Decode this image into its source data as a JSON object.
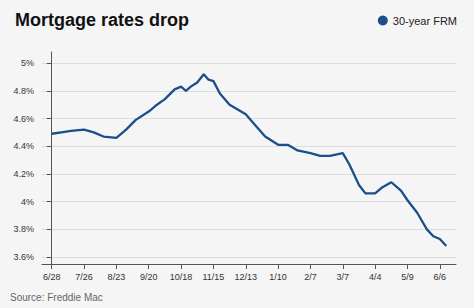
{
  "chart_data": {
    "type": "line",
    "title": "Mortgage rates drop",
    "annotations": [
      "Source: Freddie Mac"
    ],
    "x": [
      0,
      0.3,
      0.6,
      1.0,
      1.3,
      1.6,
      2.0,
      2.3,
      2.6,
      3.0,
      3.2,
      3.5,
      3.8,
      4.0,
      4.15,
      4.3,
      4.5,
      4.7,
      4.85,
      5.0,
      5.2,
      5.5,
      6.0,
      6.3,
      6.6,
      7.0,
      7.3,
      7.6,
      8.0,
      8.3,
      8.6,
      9.0,
      9.2,
      9.5,
      9.7,
      10.0,
      10.2,
      10.5,
      10.8,
      11.0,
      11.3,
      11.6,
      11.8,
      12.0,
      12.2
    ],
    "series": [
      {
        "name": "30-year FRM",
        "color": "#1a4f8a",
        "values": [
          4.49,
          4.5,
          4.51,
          4.52,
          4.5,
          4.47,
          4.46,
          4.52,
          4.59,
          4.65,
          4.69,
          4.74,
          4.81,
          4.83,
          4.8,
          4.83,
          4.86,
          4.92,
          4.88,
          4.87,
          4.78,
          4.7,
          4.63,
          4.55,
          4.47,
          4.41,
          4.41,
          4.37,
          4.35,
          4.33,
          4.33,
          4.35,
          4.27,
          4.12,
          4.06,
          4.06,
          4.1,
          4.14,
          4.08,
          4.01,
          3.92,
          3.8,
          3.75,
          3.73,
          3.68
        ]
      }
    ],
    "xlim": [
      -0.3,
      12.5
    ],
    "xticks": [
      {
        "value": 0,
        "label": "6/28"
      },
      {
        "value": 1,
        "label": "7/26"
      },
      {
        "value": 2,
        "label": "8/23"
      },
      {
        "value": 3,
        "label": "9/20"
      },
      {
        "value": 4,
        "label": "10/18"
      },
      {
        "value": 5,
        "label": "11/15"
      },
      {
        "value": 6,
        "label": "12/13"
      },
      {
        "value": 7,
        "label": "1/10"
      },
      {
        "value": 8,
        "label": "2/7"
      },
      {
        "value": 9,
        "label": "3/7"
      },
      {
        "value": 10,
        "label": "4/4"
      },
      {
        "value": 11,
        "label": "5/9"
      },
      {
        "value": 12,
        "label": "6/6"
      }
    ],
    "ylim": [
      3.55,
      5.08
    ],
    "yticks": [
      {
        "value": 3.6,
        "label": "3.6%"
      },
      {
        "value": 3.8,
        "label": "3.8%"
      },
      {
        "value": 4.0,
        "label": "4%"
      },
      {
        "value": 4.2,
        "label": "4.2%"
      },
      {
        "value": 4.4,
        "label": "4.4%"
      },
      {
        "value": 4.6,
        "label": "4.6%"
      },
      {
        "value": 4.8,
        "label": "4.8%"
      },
      {
        "value": 5.0,
        "label": "5%"
      }
    ],
    "grid": true,
    "legend": "upper right"
  }
}
